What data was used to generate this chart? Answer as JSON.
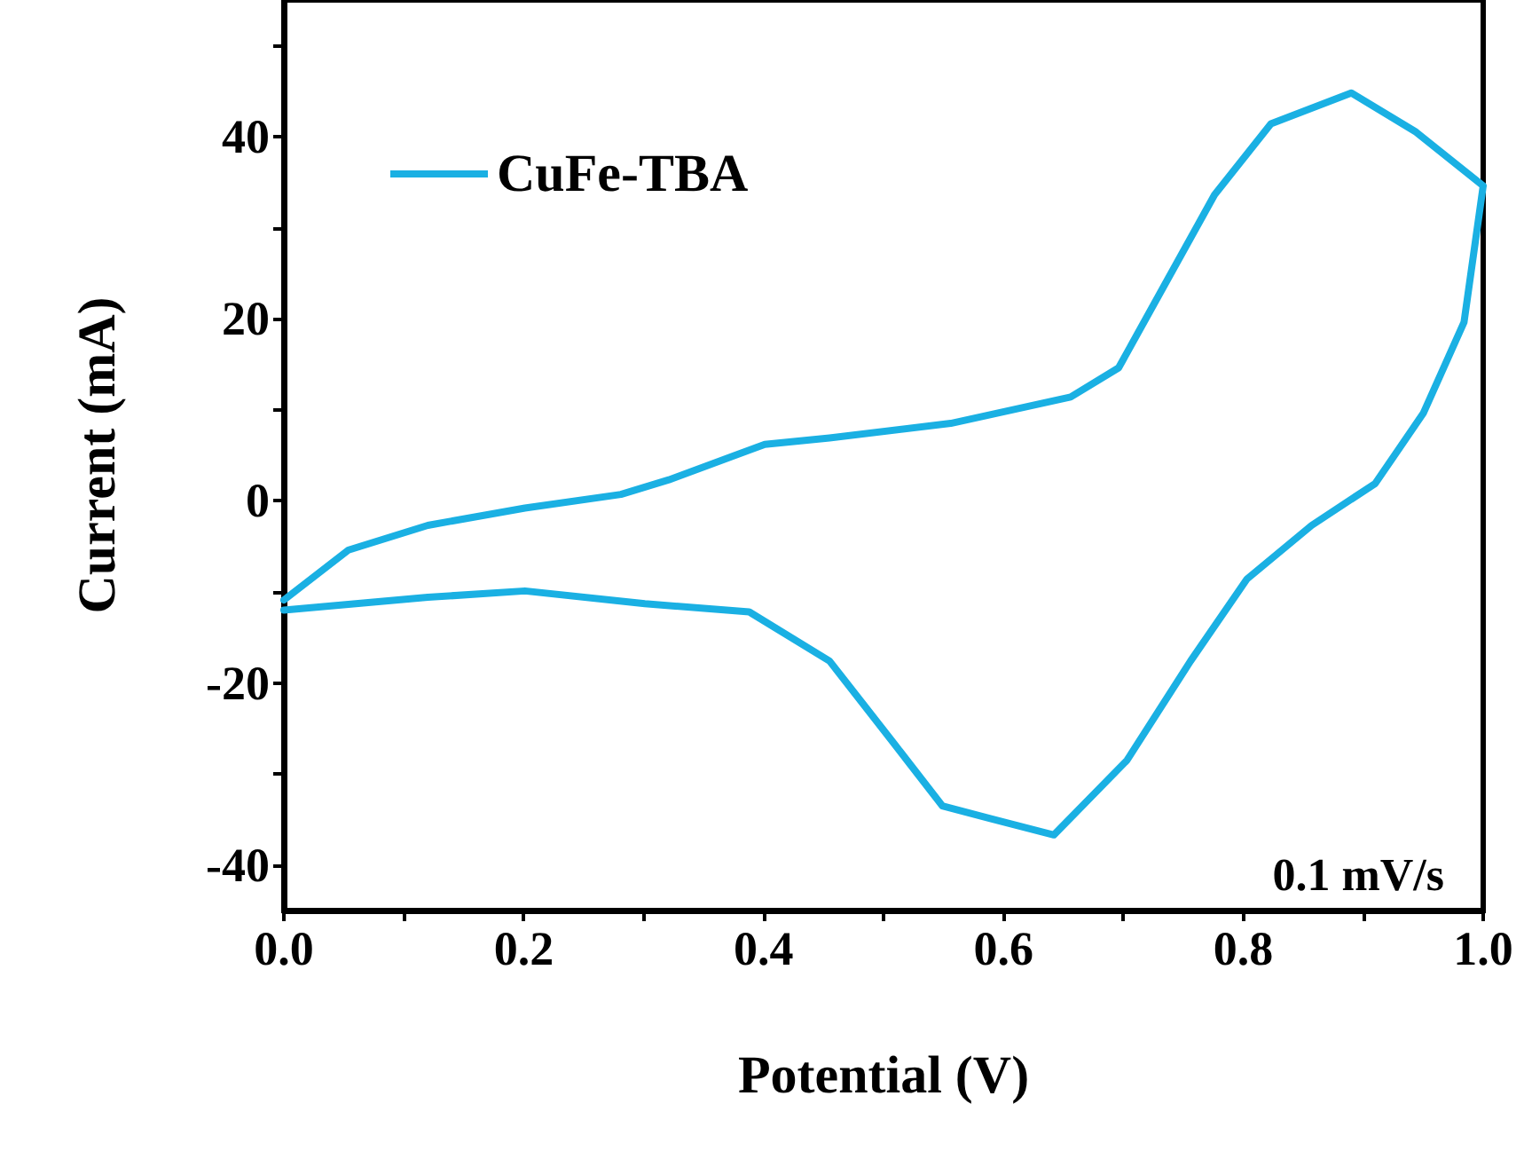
{
  "chart_data": {
    "type": "line",
    "xlabel": "Potential (V)",
    "ylabel": "Current (mA)",
    "annotations": [
      "0.1 mV/s"
    ],
    "xlim": [
      0,
      1
    ],
    "xticks": [
      {
        "value": 0,
        "label": "0.0"
      },
      {
        "value": 0.1,
        "label": null
      },
      {
        "value": 0.2,
        "label": "0.2"
      },
      {
        "value": 0.3,
        "label": null
      },
      {
        "value": 0.4,
        "label": "0.4"
      },
      {
        "value": 0.5,
        "label": null
      },
      {
        "value": 0.6,
        "label": "0.6"
      },
      {
        "value": 0.7,
        "label": null
      },
      {
        "value": 0.8,
        "label": "0.8"
      },
      {
        "value": 0.9,
        "label": null
      },
      {
        "value": 1,
        "label": "1.0"
      }
    ],
    "ylim": [
      -45,
      55
    ],
    "yticks": [
      -40,
      {
        "value": -30,
        "label": null
      },
      -20,
      {
        "value": -10,
        "label": null
      },
      0,
      {
        "value": 10,
        "label": null
      },
      20,
      {
        "value": 30,
        "label": null
      },
      40,
      {
        "value": 50,
        "label": null
      }
    ],
    "legend": "top left",
    "grid": false,
    "marker": "none",
    "line_style": "solid",
    "series": [
      {
        "name": "CuFe-TBA",
        "color": "#1ab0e3",
        "x": [
          0,
          0.054,
          0.12,
          0.201,
          0.281,
          0.321,
          0.401,
          0.455,
          0.556,
          0.656,
          0.696,
          0.736,
          0.776,
          0.823,
          0.89,
          0.944,
          1.0,
          0.984,
          0.95,
          0.91,
          0.857,
          0.803,
          0.756,
          0.703,
          0.642,
          0.589,
          0.549,
          0.509,
          0.455,
          0.388,
          0.301,
          0.201,
          0.12,
          0
        ],
        "values": [
          -10.9,
          -5.4,
          -2.7,
          -0.8,
          0.7,
          2.3,
          6.2,
          6.9,
          8.5,
          11.4,
          14.6,
          24.1,
          33.6,
          41.4,
          44.8,
          40.5,
          34.6,
          19.6,
          9.6,
          1.9,
          -2.7,
          -8.6,
          -17.6,
          -28.5,
          -36.7,
          -34.9,
          -33.5,
          -26.7,
          -17.6,
          -12.2,
          -11.3,
          -9.9,
          -10.6,
          -12.0
        ]
      }
    ]
  }
}
